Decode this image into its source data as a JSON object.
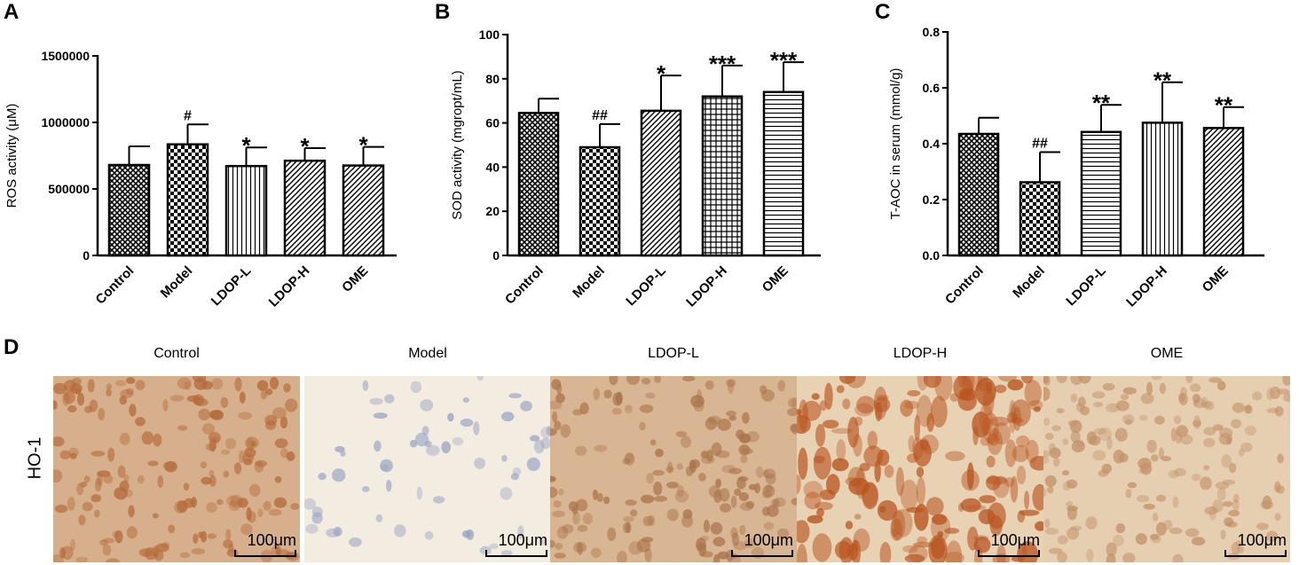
{
  "panel_letters": [
    "A",
    "B",
    "C",
    "D"
  ],
  "chart_data": [
    {
      "type": "bar",
      "panel": "A",
      "categories": [
        "Control",
        "Model",
        "LDOP-L",
        "LDOP-H",
        "OME"
      ],
      "values": [
        680000,
        835000,
        672000,
        712000,
        676000
      ],
      "errors": [
        140000,
        150000,
        140000,
        95000,
        140000
      ],
      "annotations": [
        "",
        "#",
        "*",
        "*",
        "*"
      ],
      "patterns": [
        "crosshatch",
        "checker",
        "vertical",
        "diagonal",
        "diagonal"
      ],
      "ylabel": "ROS activity (μM)",
      "ylim": [
        0,
        1500000
      ],
      "yticks": [
        0,
        500000,
        1000000,
        1500000
      ],
      "ytick_labels": [
        "0",
        "500000",
        "1000000",
        "1500000"
      ]
    },
    {
      "type": "bar",
      "panel": "B",
      "categories": [
        "Control",
        "Model",
        "LDOP-L",
        "LDOP-H",
        "OME"
      ],
      "values": [
        64.5,
        49,
        65.5,
        72,
        74
      ],
      "errors": [
        6.5,
        10.5,
        16,
        14,
        13.5
      ],
      "annotations": [
        "",
        "##",
        "*",
        "***",
        "***"
      ],
      "patterns": [
        "crosshatch",
        "checker",
        "diagonal",
        "grid",
        "horizontal"
      ],
      "ylabel": "SOD activity (mgropt/mL)",
      "ylim": [
        0,
        100
      ],
      "yticks": [
        0,
        20,
        40,
        60,
        80,
        100
      ],
      "ytick_labels": [
        "0",
        "20",
        "40",
        "60",
        "80",
        "100"
      ]
    },
    {
      "type": "bar",
      "panel": "C",
      "categories": [
        "Control",
        "Model",
        "LDOP-L",
        "LDOP-H",
        "OME"
      ],
      "values": [
        0.435,
        0.262,
        0.442,
        0.475,
        0.456
      ],
      "errors": [
        0.058,
        0.108,
        0.097,
        0.145,
        0.075
      ],
      "annotations": [
        "",
        "##",
        "**",
        "**",
        "**"
      ],
      "patterns": [
        "crosshatch",
        "checker",
        "horizontal",
        "vertical",
        "diagonal"
      ],
      "ylabel": "T-AOC in serum (mmol/g)",
      "ylim": [
        0,
        0.8
      ],
      "yticks": [
        0,
        0.2,
        0.4,
        0.6,
        0.8
      ],
      "ytick_labels": [
        "0.0",
        "0.2",
        "0.4",
        "0.6",
        "0.8"
      ]
    }
  ],
  "micrographs": {
    "row_label": "HO-1",
    "titles": [
      "Control",
      "Model",
      "LDOP-L",
      "LDOP-H",
      "OME"
    ],
    "scalebar_text": "100μm",
    "tints": [
      "#d6b08c",
      "#f3ece0",
      "#d9b693",
      "#e8d2b4",
      "#e6cfb1"
    ],
    "stain": [
      "#b56a3a",
      "#9aa4c4",
      "#a9744c",
      "#b8541f",
      "#c2926a"
    ]
  }
}
